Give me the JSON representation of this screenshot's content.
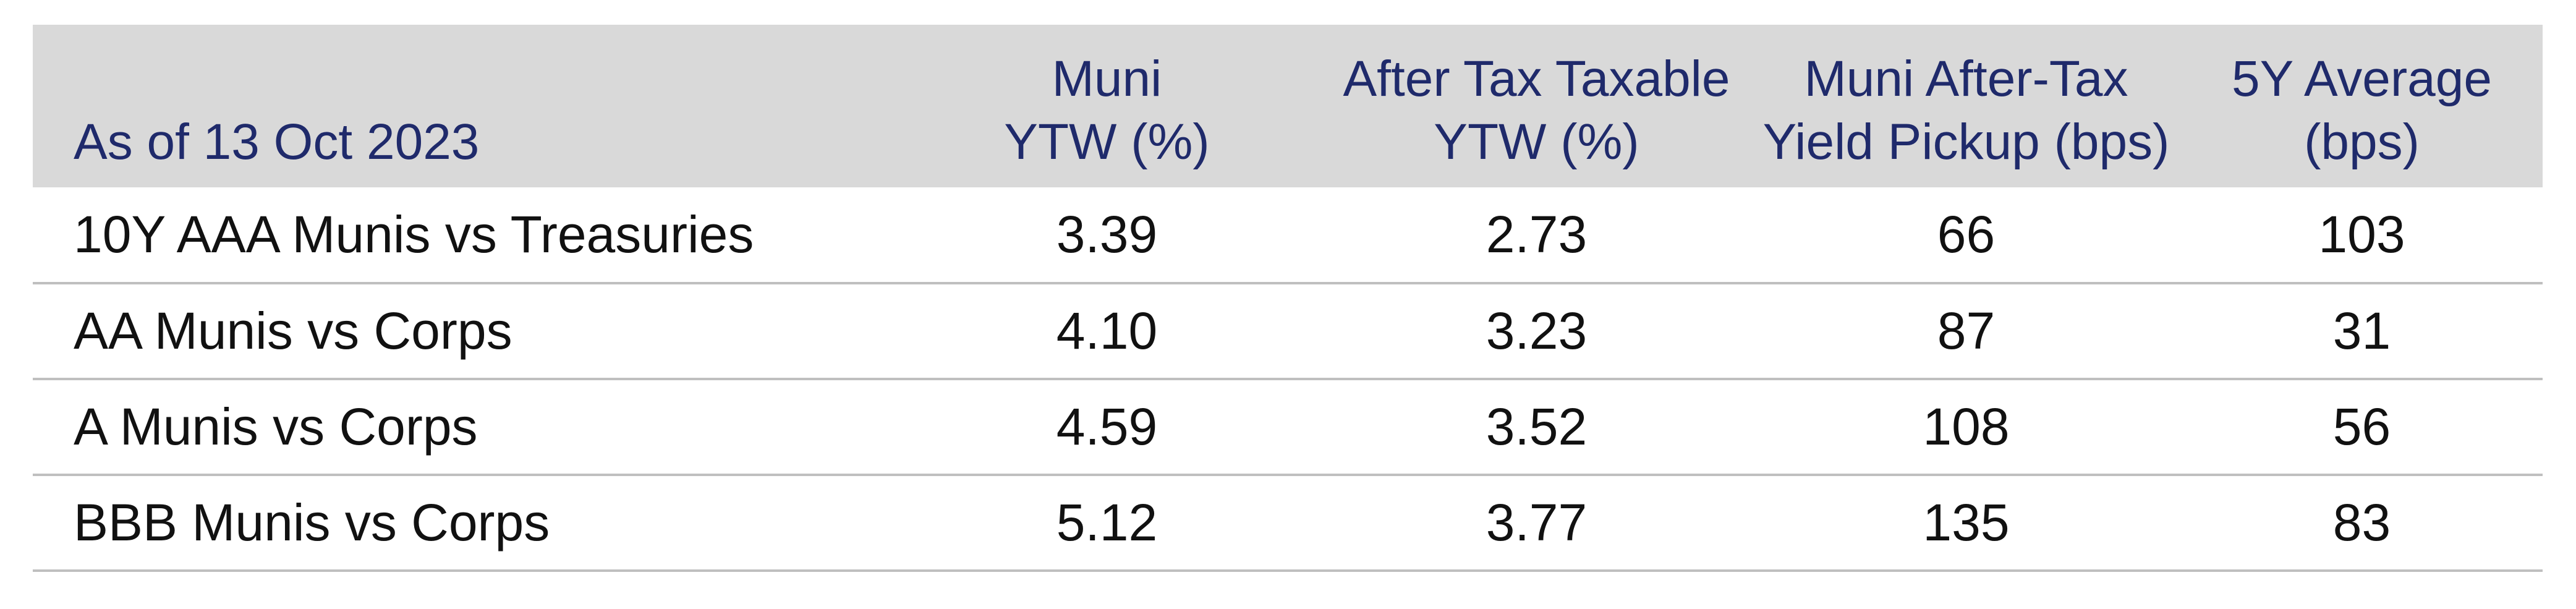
{
  "table": {
    "headers": [
      {
        "lines": [
          "As of 13 Oct 2023"
        ]
      },
      {
        "lines": [
          "Muni",
          "YTW (%)"
        ]
      },
      {
        "lines": [
          "After Tax Taxable",
          "YTW (%)"
        ]
      },
      {
        "lines": [
          "Muni After-Tax",
          "Yield Pickup (bps)"
        ]
      },
      {
        "lines": [
          "5Y Average",
          "(bps)"
        ]
      }
    ],
    "rows": [
      {
        "label": "10Y AAA Munis vs Treasuries",
        "muni_ytw": "3.39",
        "after_tax_ytw": "2.73",
        "pickup": "66",
        "avg5y": "103"
      },
      {
        "label": "AA Munis vs Corps",
        "muni_ytw": "4.10",
        "after_tax_ytw": "3.23",
        "pickup": "87",
        "avg5y": "31"
      },
      {
        "label": "A Munis vs Corps",
        "muni_ytw": "4.59",
        "after_tax_ytw": "3.52",
        "pickup": "108",
        "avg5y": "56"
      },
      {
        "label": "BBB Munis vs Corps",
        "muni_ytw": "5.12",
        "after_tax_ytw": "3.77",
        "pickup": "135",
        "avg5y": "83"
      }
    ]
  },
  "colors": {
    "header_bg": "#d9d9d9",
    "header_text": "#1f2a6b",
    "body_text": "#111111",
    "row_rule": "#bfbfbf"
  }
}
